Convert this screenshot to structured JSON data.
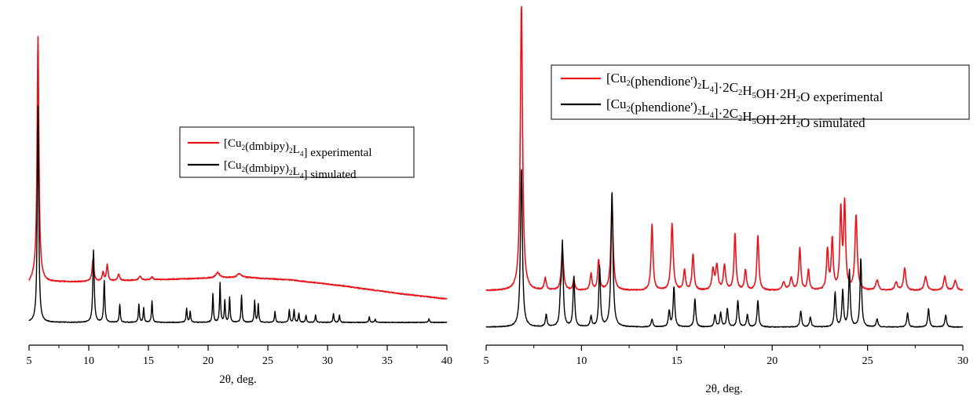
{
  "chart_data": [
    {
      "type": "line",
      "xlabel": "2θ, deg.",
      "xlim": [
        5,
        40
      ],
      "xticks": [
        5,
        10,
        15,
        20,
        25,
        30,
        35,
        40
      ],
      "xtick_labels": [
        "5",
        "10",
        "15",
        "20",
        "25",
        "30",
        "35",
        "40"
      ],
      "legend_position": "center-right",
      "colors": {
        "experimental": "#e8141b",
        "simulated": "#000000"
      },
      "legend": [
        {
          "series": "experimental",
          "formula": "[Cu2(dmbipy)2L4]",
          "suffix": "experimental",
          "parts": [
            [
              "[Cu",
              ""
            ],
            [
              "2",
              "sub"
            ],
            [
              "(dmbipy)",
              ""
            ],
            [
              "2",
              "sub"
            ],
            [
              "L",
              ""
            ],
            [
              "4",
              "sub"
            ],
            [
              "] experimental",
              ""
            ]
          ]
        },
        {
          "series": "simulated",
          "formula": "[Cu2(dmbipy)2L4]",
          "suffix": "simulated",
          "parts": [
            [
              "[Cu",
              ""
            ],
            [
              "2",
              "sub"
            ],
            [
              "(dmbipy)",
              ""
            ],
            [
              "2",
              "sub"
            ],
            [
              "L",
              ""
            ],
            [
              "4",
              "sub"
            ],
            [
              "] simulated",
              ""
            ]
          ]
        }
      ],
      "series": [
        {
          "id": "experimental",
          "baseline": [
            [
              5,
              0.215
            ],
            [
              5.4,
              0.24
            ],
            [
              6.5,
              0.225
            ],
            [
              9,
              0.225
            ],
            [
              12,
              0.23
            ],
            [
              20,
              0.245
            ],
            [
              23,
              0.25
            ],
            [
              27,
              0.235
            ],
            [
              31,
              0.205
            ],
            [
              36,
              0.16
            ],
            [
              40,
              0.13
            ]
          ],
          "noise": 0.006,
          "peaks": [
            [
              5.75,
              1.35,
              0.09
            ],
            [
              10.35,
              0.12,
              0.09
            ],
            [
              11.2,
              0.05,
              0.08
            ],
            [
              11.55,
              0.09,
              0.08
            ],
            [
              12.5,
              0.035,
              0.1
            ],
            [
              14.3,
              0.02,
              0.12
            ],
            [
              15.3,
              0.015,
              0.1
            ],
            [
              20.8,
              0.03,
              0.2
            ],
            [
              22.6,
              0.02,
              0.2
            ]
          ]
        },
        {
          "id": "simulated",
          "baseline": [
            [
              5,
              0.0
            ],
            [
              40,
              0.0
            ]
          ],
          "noise": 0.004,
          "peaks": [
            [
              5.75,
              1.2,
              0.07
            ],
            [
              10.4,
              0.4,
              0.07
            ],
            [
              11.3,
              0.23,
              0.06
            ],
            [
              12.6,
              0.1,
              0.05
            ],
            [
              14.2,
              0.1,
              0.05
            ],
            [
              14.6,
              0.08,
              0.05
            ],
            [
              15.3,
              0.12,
              0.05
            ],
            [
              18.2,
              0.08,
              0.05
            ],
            [
              18.5,
              0.06,
              0.05
            ],
            [
              20.4,
              0.16,
              0.05
            ],
            [
              21.0,
              0.22,
              0.05
            ],
            [
              21.4,
              0.12,
              0.05
            ],
            [
              21.8,
              0.14,
              0.05
            ],
            [
              22.8,
              0.15,
              0.05
            ],
            [
              23.9,
              0.12,
              0.05
            ],
            [
              24.2,
              0.1,
              0.05
            ],
            [
              25.6,
              0.06,
              0.05
            ],
            [
              26.8,
              0.07,
              0.05
            ],
            [
              27.2,
              0.07,
              0.05
            ],
            [
              27.6,
              0.05,
              0.05
            ],
            [
              28.2,
              0.04,
              0.05
            ],
            [
              29.0,
              0.04,
              0.05
            ],
            [
              30.5,
              0.05,
              0.05
            ],
            [
              31.0,
              0.04,
              0.05
            ],
            [
              33.5,
              0.03,
              0.05
            ],
            [
              34.0,
              0.02,
              0.05
            ],
            [
              38.5,
              0.02,
              0.05
            ]
          ]
        }
      ]
    },
    {
      "type": "line",
      "xlabel": "2θ, deg.",
      "xlim": [
        5,
        30
      ],
      "xticks": [
        5,
        10,
        15,
        20,
        25,
        30
      ],
      "xtick_labels": [
        "5",
        "10",
        "15",
        "20",
        "25",
        "30"
      ],
      "legend_position": "top-right",
      "colors": {
        "experimental": "#e8141b",
        "simulated": "#000000"
      },
      "legend": [
        {
          "series": "experimental",
          "formula": "[Cu2(phendione')2L4]·2C2H5OH·2H2O",
          "suffix": "experimental",
          "parts": [
            [
              "[Cu",
              ""
            ],
            [
              "2",
              "sub"
            ],
            [
              "(phendione')",
              ""
            ],
            [
              "2",
              "sub"
            ],
            [
              "L",
              ""
            ],
            [
              "4",
              "sub"
            ],
            [
              "]·2C",
              ""
            ],
            [
              "2",
              "sub"
            ],
            [
              "H",
              ""
            ],
            [
              "5",
              "sub"
            ],
            [
              "OH·2H",
              ""
            ],
            [
              "2",
              "sub"
            ],
            [
              "O  experimental",
              ""
            ]
          ]
        },
        {
          "series": "simulated",
          "formula": "[Cu2(phendione')2L4]·2C2H5OH·2H2O",
          "suffix": "simulated",
          "parts": [
            [
              "[Cu",
              ""
            ],
            [
              "2",
              "sub"
            ],
            [
              "(phendione')",
              ""
            ],
            [
              "2",
              "sub"
            ],
            [
              "L",
              ""
            ],
            [
              "4",
              "sub"
            ],
            [
              "]·2C",
              ""
            ],
            [
              "2",
              "sub"
            ],
            [
              "H",
              ""
            ],
            [
              "5",
              "sub"
            ],
            [
              "OH·2H",
              ""
            ],
            [
              "2",
              "sub"
            ],
            [
              "O  simulated",
              ""
            ]
          ]
        }
      ],
      "series": [
        {
          "id": "experimental",
          "baseline": [
            [
              5,
              0.18
            ],
            [
              15,
              0.18
            ],
            [
              25,
              0.18
            ],
            [
              30,
              0.18
            ]
          ],
          "noise": 0.006,
          "peaks": [
            [
              6.85,
              1.42,
              0.07
            ],
            [
              8.1,
              0.06,
              0.06
            ],
            [
              9.0,
              0.2,
              0.07
            ],
            [
              9.6,
              0.05,
              0.06
            ],
            [
              10.5,
              0.08,
              0.06
            ],
            [
              10.9,
              0.15,
              0.06
            ],
            [
              11.6,
              0.43,
              0.07
            ],
            [
              13.7,
              0.33,
              0.06
            ],
            [
              14.75,
              0.33,
              0.07
            ],
            [
              15.4,
              0.1,
              0.06
            ],
            [
              15.85,
              0.18,
              0.06
            ],
            [
              16.9,
              0.1,
              0.07
            ],
            [
              17.1,
              0.12,
              0.07
            ],
            [
              17.5,
              0.12,
              0.07
            ],
            [
              18.05,
              0.28,
              0.06
            ],
            [
              18.6,
              0.1,
              0.06
            ],
            [
              19.25,
              0.27,
              0.06
            ],
            [
              20.6,
              0.04,
              0.08
            ],
            [
              21.0,
              0.06,
              0.08
            ],
            [
              21.45,
              0.21,
              0.06
            ],
            [
              21.9,
              0.1,
              0.06
            ],
            [
              22.9,
              0.2,
              0.06
            ],
            [
              23.15,
              0.25,
              0.06
            ],
            [
              23.6,
              0.39,
              0.06
            ],
            [
              23.8,
              0.42,
              0.06
            ],
            [
              24.4,
              0.37,
              0.07
            ],
            [
              25.5,
              0.05,
              0.08
            ],
            [
              26.5,
              0.04,
              0.08
            ],
            [
              26.95,
              0.11,
              0.07
            ],
            [
              28.05,
              0.07,
              0.08
            ],
            [
              29.05,
              0.07,
              0.07
            ],
            [
              29.6,
              0.05,
              0.08
            ]
          ]
        },
        {
          "id": "simulated",
          "baseline": [
            [
              5,
              0.0
            ],
            [
              30,
              0.0
            ]
          ],
          "noise": 0.004,
          "peaks": [
            [
              6.85,
              0.79,
              0.06
            ],
            [
              8.15,
              0.06,
              0.05
            ],
            [
              8.9,
              0.13,
              0.05
            ],
            [
              9.0,
              0.4,
              0.05
            ],
            [
              9.6,
              0.25,
              0.05
            ],
            [
              10.5,
              0.05,
              0.05
            ],
            [
              10.95,
              0.3,
              0.05
            ],
            [
              11.6,
              0.67,
              0.06
            ],
            [
              13.7,
              0.04,
              0.05
            ],
            [
              14.6,
              0.08,
              0.05
            ],
            [
              14.85,
              0.2,
              0.05
            ],
            [
              15.95,
              0.14,
              0.05
            ],
            [
              17.0,
              0.06,
              0.05
            ],
            [
              17.3,
              0.07,
              0.05
            ],
            [
              17.65,
              0.09,
              0.05
            ],
            [
              18.2,
              0.13,
              0.05
            ],
            [
              18.7,
              0.06,
              0.05
            ],
            [
              19.25,
              0.13,
              0.05
            ],
            [
              21.5,
              0.08,
              0.05
            ],
            [
              22.0,
              0.05,
              0.05
            ],
            [
              23.3,
              0.17,
              0.05
            ],
            [
              23.7,
              0.18,
              0.05
            ],
            [
              24.05,
              0.28,
              0.05
            ],
            [
              24.65,
              0.34,
              0.05
            ],
            [
              25.5,
              0.04,
              0.05
            ],
            [
              27.1,
              0.07,
              0.05
            ],
            [
              28.2,
              0.09,
              0.05
            ],
            [
              29.1,
              0.06,
              0.05
            ]
          ]
        }
      ]
    }
  ]
}
